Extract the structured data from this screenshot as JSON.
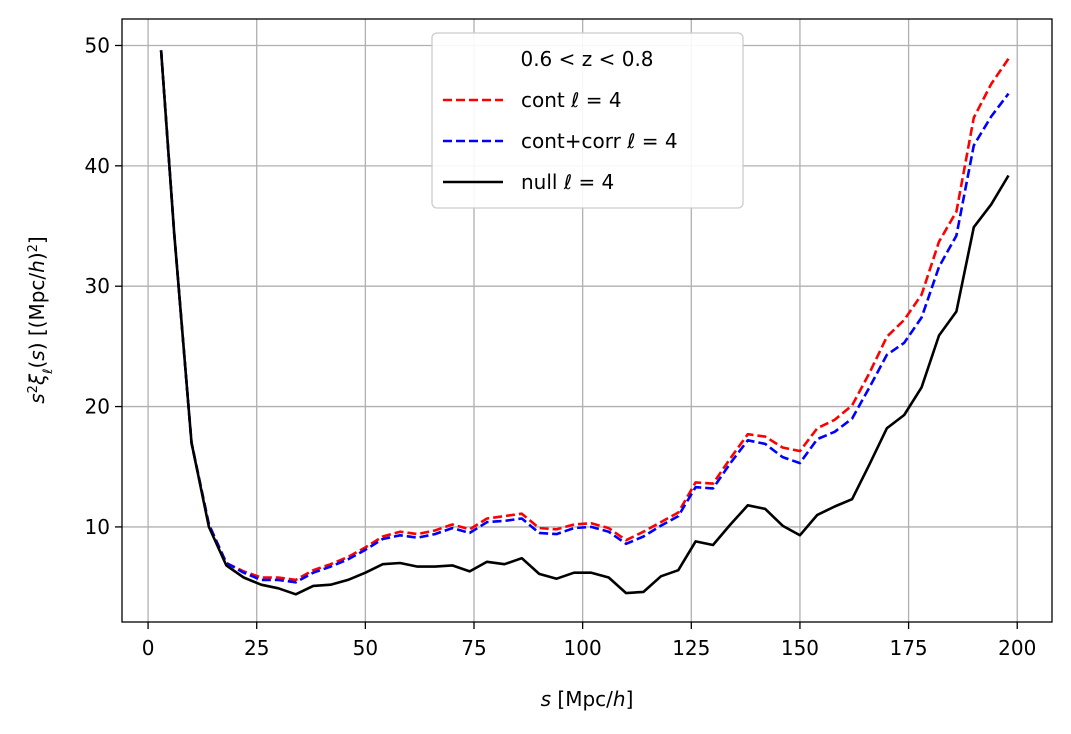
{
  "chart_data": {
    "type": "line",
    "xlabel": "s [Mpc/h]",
    "ylabel": "s²ξℓ(s) [(Mpc/h)²]",
    "xlim": [
      -6,
      208
    ],
    "ylim": [
      2.1,
      52.2
    ],
    "xticks": [
      0,
      25,
      50,
      75,
      100,
      125,
      150,
      175,
      200
    ],
    "yticks": [
      10,
      20,
      30,
      40,
      50
    ],
    "grid": true,
    "legend": {
      "title": "0.6 < z < 0.8",
      "placement": "top-center"
    },
    "x": [
      3,
      6,
      10,
      14,
      18,
      22,
      26,
      30,
      34,
      38,
      42,
      46,
      50,
      54,
      58,
      62,
      66,
      70,
      74,
      78,
      82,
      86,
      90,
      94,
      98,
      102,
      106,
      110,
      114,
      118,
      122,
      126,
      130,
      134,
      138,
      142,
      146,
      150,
      154,
      158,
      162,
      166,
      170,
      174,
      178,
      182,
      186,
      190,
      194,
      198
    ],
    "series": [
      {
        "name": "cont ℓ = 4",
        "color": "#ff0000",
        "dash": "dashed",
        "values": [
          49.6,
          34.5,
          17.0,
          10.2,
          7.0,
          6.3,
          5.8,
          5.8,
          5.6,
          6.4,
          6.9,
          7.5,
          8.3,
          9.2,
          9.6,
          9.4,
          9.7,
          10.2,
          9.8,
          10.7,
          10.9,
          11.1,
          9.9,
          9.8,
          10.2,
          10.3,
          9.9,
          8.9,
          9.6,
          10.4,
          11.2,
          13.7,
          13.6,
          15.7,
          17.7,
          17.5,
          16.6,
          16.3,
          18.2,
          18.9,
          20.1,
          22.8,
          25.8,
          27.2,
          29.3,
          33.7,
          36.2,
          44.0,
          46.8,
          48.9
        ]
      },
      {
        "name": "cont+corr ℓ = 4",
        "color": "#0000ff",
        "dash": "dashed",
        "values": [
          49.6,
          34.5,
          17.0,
          10.2,
          7.0,
          6.2,
          5.6,
          5.6,
          5.4,
          6.2,
          6.7,
          7.3,
          8.1,
          9.0,
          9.3,
          9.1,
          9.4,
          9.9,
          9.5,
          10.4,
          10.5,
          10.7,
          9.5,
          9.4,
          9.9,
          10.0,
          9.6,
          8.6,
          9.2,
          10.1,
          10.9,
          13.3,
          13.2,
          15.3,
          17.2,
          16.9,
          15.8,
          15.3,
          17.3,
          17.9,
          19.0,
          21.6,
          24.3,
          25.3,
          27.4,
          31.6,
          34.2,
          41.7,
          44.1,
          46.0
        ]
      },
      {
        "name": "null ℓ = 4",
        "color": "#000000",
        "dash": "solid",
        "values": [
          49.6,
          34.5,
          17.0,
          10.0,
          6.8,
          5.8,
          5.2,
          4.9,
          4.4,
          5.1,
          5.2,
          5.6,
          6.2,
          6.9,
          7.0,
          6.7,
          6.7,
          6.8,
          6.3,
          7.1,
          6.9,
          7.4,
          6.1,
          5.7,
          6.2,
          6.2,
          5.8,
          4.5,
          4.6,
          5.9,
          6.4,
          8.8,
          8.5,
          10.2,
          11.8,
          11.5,
          10.1,
          9.3,
          11.0,
          11.7,
          12.3,
          15.2,
          18.2,
          19.3,
          21.6,
          25.9,
          27.9,
          34.9,
          36.8,
          39.2
        ]
      }
    ]
  }
}
